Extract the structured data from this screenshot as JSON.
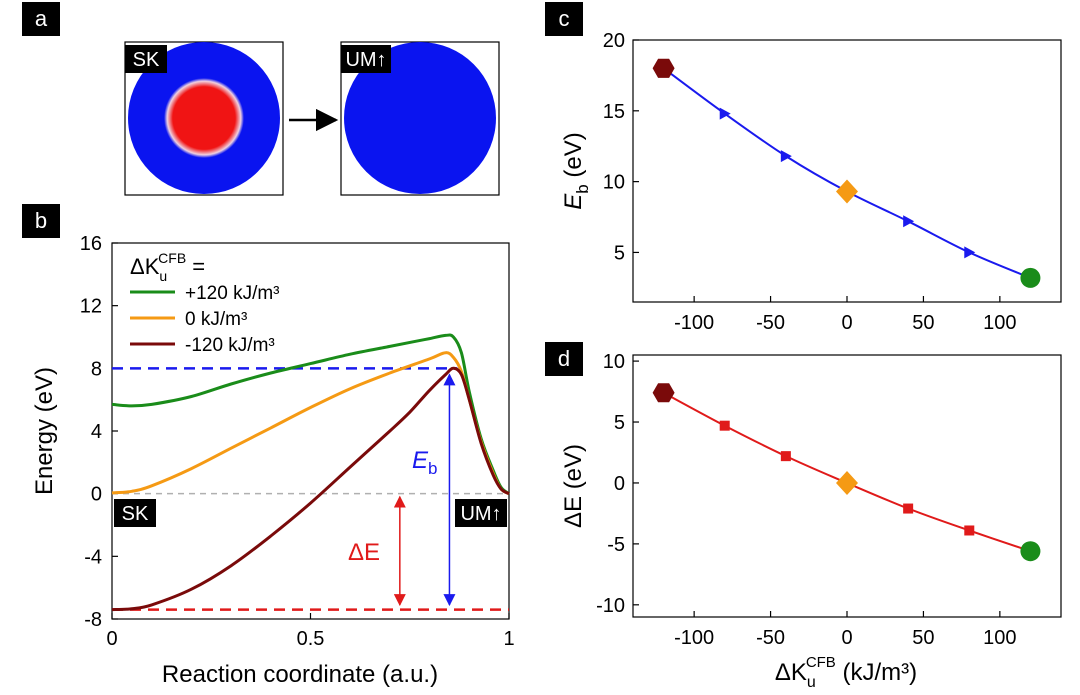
{
  "panel_labels": {
    "a": "a",
    "b": "b",
    "c": "c",
    "d": "d"
  },
  "panel_a": {
    "left_tag": "SK",
    "right_tag": "UM↑",
    "colors": {
      "outer": "#0a14f0",
      "core": "#f01414"
    }
  },
  "chart_data": [
    {
      "id": "b",
      "type": "line",
      "xlabel": "Reaction coordinate (a.u.)",
      "ylabel": "Energy (eV)",
      "xlim": [
        0,
        1
      ],
      "ylim": [
        -8,
        16
      ],
      "xticks": [
        "0",
        "0.5",
        "1"
      ],
      "yticks": [
        "-8",
        "-4",
        "0",
        "4",
        "8",
        "12",
        "16"
      ],
      "legend": {
        "title_prefix": "ΔK",
        "title_sub": "u",
        "title_sup": "CFB",
        "title_suffix": " =",
        "placement": "top-left"
      },
      "series": [
        {
          "name": "+120 kJ/m³",
          "color": "#1a8c1a",
          "points": [
            [
              0.0,
              5.7
            ],
            [
              0.05,
              5.6
            ],
            [
              0.1,
              5.7
            ],
            [
              0.2,
              6.2
            ],
            [
              0.3,
              7.0
            ],
            [
              0.4,
              7.7
            ],
            [
              0.5,
              8.3
            ],
            [
              0.6,
              8.9
            ],
            [
              0.7,
              9.4
            ],
            [
              0.76,
              9.7
            ],
            [
              0.8,
              9.9
            ],
            [
              0.84,
              10.1
            ],
            [
              0.86,
              10.0
            ],
            [
              0.88,
              9.0
            ],
            [
              0.9,
              6.5
            ],
            [
              0.93,
              3.5
            ],
            [
              0.96,
              1.5
            ],
            [
              0.98,
              0.4
            ],
            [
              1.0,
              0.0
            ]
          ]
        },
        {
          "name": "0 kJ/m³",
          "color": "#f59a14",
          "points": [
            [
              0.0,
              0.05
            ],
            [
              0.05,
              0.15
            ],
            [
              0.1,
              0.5
            ],
            [
              0.2,
              1.6
            ],
            [
              0.3,
              2.9
            ],
            [
              0.4,
              4.2
            ],
            [
              0.5,
              5.5
            ],
            [
              0.6,
              6.7
            ],
            [
              0.7,
              7.7
            ],
            [
              0.8,
              8.6
            ],
            [
              0.84,
              9.0
            ],
            [
              0.86,
              8.7
            ],
            [
              0.88,
              7.8
            ],
            [
              0.9,
              6.0
            ],
            [
              0.93,
              3.3
            ],
            [
              0.96,
              1.3
            ],
            [
              0.98,
              0.3
            ],
            [
              1.0,
              0.0
            ]
          ]
        },
        {
          "name": "-120 kJ/m³",
          "color": "#7a0a0a",
          "points": [
            [
              0.0,
              -7.4
            ],
            [
              0.05,
              -7.35
            ],
            [
              0.1,
              -7.1
            ],
            [
              0.2,
              -6.1
            ],
            [
              0.3,
              -4.6
            ],
            [
              0.4,
              -2.7
            ],
            [
              0.5,
              -0.6
            ],
            [
              0.6,
              1.7
            ],
            [
              0.7,
              4.0
            ],
            [
              0.75,
              5.2
            ],
            [
              0.8,
              6.6
            ],
            [
              0.84,
              7.6
            ],
            [
              0.86,
              8.0
            ],
            [
              0.88,
              7.6
            ],
            [
              0.9,
              6.0
            ],
            [
              0.93,
              3.2
            ],
            [
              0.96,
              1.2
            ],
            [
              0.98,
              0.3
            ],
            [
              1.0,
              0.0
            ]
          ]
        }
      ],
      "reference_lines": [
        {
          "y": 8,
          "color": "#1a1aee",
          "style": "dashed"
        },
        {
          "y": -7.4,
          "color": "#e01a1a",
          "style": "dashed"
        },
        {
          "y": 0,
          "color": "#b0b0b0",
          "style": "dashed"
        }
      ],
      "annotations": {
        "Eb_label": "E",
        "Eb_sub": "b",
        "dE_label": "ΔE",
        "left_tag": "SK",
        "right_tag": "UM↑"
      },
      "colors": {
        "Eb": "#1a1aee",
        "dE": "#e01a1a"
      }
    },
    {
      "id": "c",
      "type": "line",
      "xlim": [
        -140,
        140
      ],
      "ylim": [
        1.5,
        20
      ],
      "xticks": [
        -100,
        -50,
        0,
        50,
        100
      ],
      "yticks": [
        5,
        10,
        15,
        20
      ],
      "ylabel_main": "E",
      "ylabel_sub": "b",
      "ylabel_suffix": " (eV)",
      "color": "#1a1aee",
      "x": [
        -120,
        -80,
        -40,
        0,
        40,
        80,
        120
      ],
      "y": [
        18.0,
        14.8,
        11.8,
        9.3,
        7.2,
        5.0,
        3.2
      ],
      "end_markers": [
        {
          "x": -120,
          "y": 18.0,
          "shape": "hexagon",
          "color": "#7a0a0a"
        },
        {
          "x": 0,
          "y": 9.3,
          "shape": "diamond",
          "color": "#f59a14"
        },
        {
          "x": 120,
          "y": 3.2,
          "shape": "circle",
          "color": "#1a8c1a"
        }
      ]
    },
    {
      "id": "d",
      "type": "line",
      "xlim": [
        -140,
        140
      ],
      "ylim": [
        -11,
        10.5
      ],
      "xticks": [
        -100,
        -50,
        0,
        50,
        100
      ],
      "yticks": [
        -10,
        -5,
        0,
        5,
        10
      ],
      "ylabel": "ΔE (eV)",
      "xlabel_prefix": "ΔK",
      "xlabel_sub": "u",
      "xlabel_sup": "CFB",
      "xlabel_suffix": " (kJ/m³)",
      "color": "#e01a1a",
      "x": [
        -120,
        -80,
        -40,
        0,
        40,
        80,
        120
      ],
      "y": [
        7.4,
        4.7,
        2.2,
        0.0,
        -2.1,
        -3.9,
        -5.6
      ],
      "end_markers": [
        {
          "x": -120,
          "y": 7.4,
          "shape": "hexagon",
          "color": "#7a0a0a"
        },
        {
          "x": 0,
          "y": 0.0,
          "shape": "diamond",
          "color": "#f59a14"
        },
        {
          "x": 120,
          "y": -5.6,
          "shape": "circle",
          "color": "#1a8c1a"
        }
      ]
    }
  ]
}
